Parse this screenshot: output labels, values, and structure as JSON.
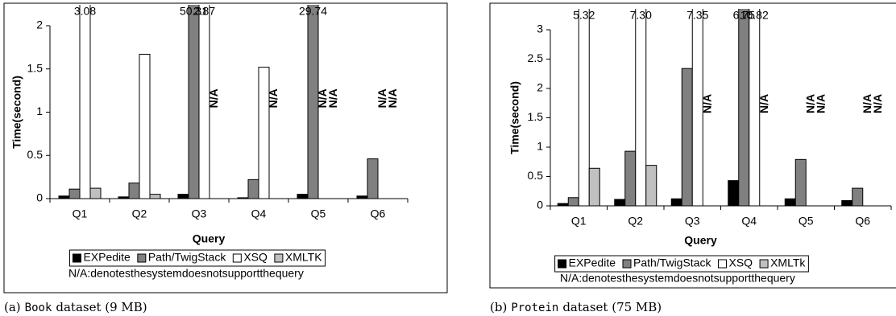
{
  "chart_data": [
    {
      "type": "bar",
      "y_label": "Time(second)",
      "x_label": "Query",
      "categories": [
        "Q1",
        "Q2",
        "Q3",
        "Q4",
        "Q5",
        "Q6"
      ],
      "series": [
        {
          "name": "EXPedite",
          "color": "#000000",
          "values": [
            0.03,
            0.02,
            0.05,
            0.01,
            0.05,
            0.03
          ],
          "value_labels": [
            null,
            null,
            null,
            null,
            null,
            null
          ]
        },
        {
          "name": "Path/TwigStack",
          "color": "#808080",
          "values": [
            0.11,
            0.18,
            50.31,
            0.22,
            29.74,
            0.46
          ],
          "value_labels": [
            null,
            null,
            "50.31",
            null,
            "29.74",
            null
          ]
        },
        {
          "name": "XSQ",
          "color": "#ffffff",
          "values": [
            3.08,
            1.67,
            2.87,
            1.52,
            null,
            null
          ],
          "value_labels": [
            "3.08",
            null,
            "2.87",
            null,
            "N/A",
            "N/A"
          ]
        },
        {
          "name": "XMLTK",
          "color": "#c0c0c0",
          "values": [
            0.12,
            0.05,
            null,
            null,
            null,
            null
          ],
          "value_labels": [
            null,
            null,
            "N/A",
            "N/A",
            "N/A",
            "N/A"
          ]
        }
      ],
      "ylim": [
        0,
        2
      ],
      "yticks": [
        0,
        0.5,
        1,
        1.5,
        2
      ],
      "legend": "bottom",
      "note": "N/A:denotesthesystemdoesnotsupportthequery",
      "caption": {
        "label": "(a)",
        "name": "Book",
        "text": "dataset (9 MB)"
      }
    },
    {
      "type": "bar",
      "y_label": "Time(second)",
      "x_label": "Query",
      "categories": [
        "Q1",
        "Q2",
        "Q3",
        "Q4",
        "Q5",
        "Q6"
      ],
      "series": [
        {
          "name": "EXPedite",
          "color": "#000000",
          "values": [
            0.04,
            0.11,
            0.12,
            0.43,
            0.12,
            0.09
          ],
          "value_labels": [
            null,
            null,
            null,
            null,
            null,
            null
          ]
        },
        {
          "name": "Path/TwigStack",
          "color": "#808080",
          "values": [
            0.14,
            0.93,
            2.34,
            6.75,
            0.79,
            0.3
          ],
          "value_labels": [
            null,
            null,
            null,
            "6.75",
            null,
            null
          ]
        },
        {
          "name": "XSQ",
          "color": "#ffffff",
          "values": [
            5.32,
            7.3,
            7.35,
            10.82,
            null,
            null
          ],
          "value_labels": [
            "5.32",
            "7.30",
            "7.35",
            "10.82",
            "N/A",
            "N/A"
          ]
        },
        {
          "name": "XMLTk",
          "color": "#c0c0c0",
          "values": [
            0.64,
            0.69,
            null,
            null,
            null,
            null
          ],
          "value_labels": [
            null,
            null,
            "N/A",
            "N/A",
            "N/A",
            "N/A"
          ]
        }
      ],
      "ylim": [
        0,
        3
      ],
      "yticks": [
        0,
        0.5,
        1,
        1.5,
        2,
        2.5,
        3
      ],
      "legend": "bottom",
      "note": "N/A:denotesthesystemdoesnotsupportthequery",
      "caption": {
        "label": "(b)",
        "name": "Protein",
        "text": "dataset (75 MB)"
      }
    }
  ]
}
